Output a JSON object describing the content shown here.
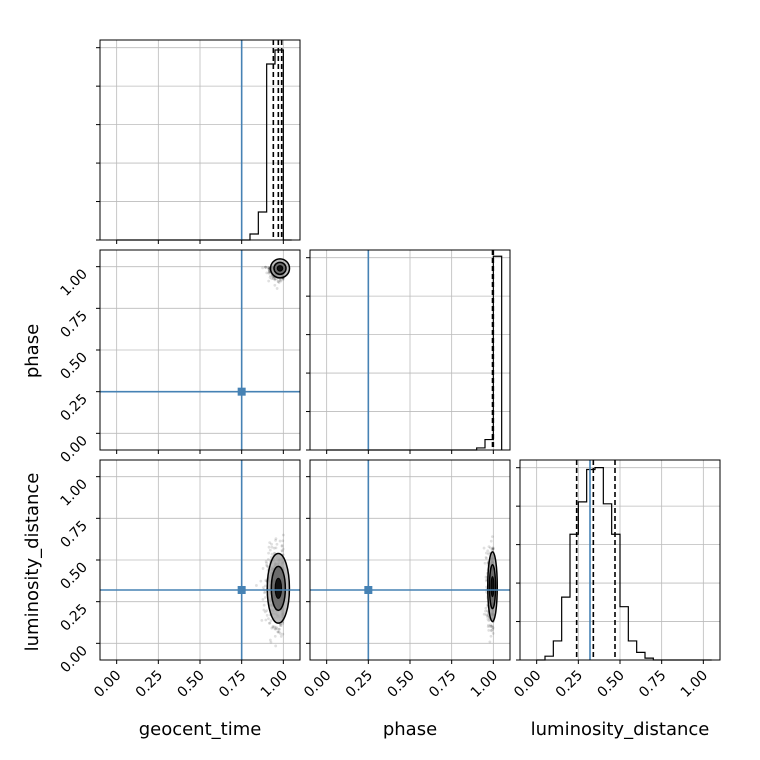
{
  "chart_data": {
    "type": "corner",
    "parameters": [
      "geocent_time",
      "phase",
      "luminosity_distance"
    ],
    "axis_range": [
      -0.1,
      1.1
    ],
    "tick_values": [
      0.0,
      0.25,
      0.5,
      0.75,
      1.0
    ],
    "tick_labels": [
      "0.00",
      "0.25",
      "0.50",
      "0.75",
      "1.00"
    ],
    "truths": {
      "geocent_time": 0.75,
      "phase": 0.25,
      "luminosity_distance": 0.32
    },
    "quantiles": {
      "geocent_time": [
        0.94,
        0.97,
        0.99
      ],
      "phase": [
        0.995,
        0.998,
        1.0
      ],
      "luminosity_distance": [
        0.24,
        0.34,
        0.47
      ]
    },
    "histograms": {
      "geocent_time": {
        "edges": [
          0.0,
          0.05,
          0.1,
          0.15,
          0.2,
          0.25,
          0.3,
          0.35,
          0.4,
          0.45,
          0.5,
          0.55,
          0.6,
          0.65,
          0.7,
          0.75,
          0.8,
          0.85,
          0.9,
          0.95,
          1.0,
          1.05
        ],
        "counts": [
          0,
          0,
          0,
          0,
          0,
          0,
          0,
          0,
          0,
          0,
          0,
          0,
          0,
          0,
          0,
          0,
          0.03,
          0.14,
          0.88,
          0.95,
          0
        ],
        "ymax": 1.0
      },
      "phase": {
        "edges": [
          0.0,
          0.05,
          0.1,
          0.15,
          0.2,
          0.25,
          0.3,
          0.35,
          0.4,
          0.45,
          0.5,
          0.55,
          0.6,
          0.65,
          0.7,
          0.75,
          0.8,
          0.85,
          0.9,
          0.95,
          1.0,
          1.05
        ],
        "counts": [
          0,
          0,
          0,
          0,
          0,
          0,
          0,
          0,
          0,
          0,
          0,
          0,
          0,
          0,
          0,
          0,
          0,
          0,
          0.01,
          0.05,
          0.93,
          0
        ],
        "ymax": 0.96
      },
      "luminosity_distance": {
        "edges": [
          0.0,
          0.05,
          0.1,
          0.15,
          0.2,
          0.25,
          0.3,
          0.35,
          0.4,
          0.45,
          0.5,
          0.55,
          0.6,
          0.65,
          0.7,
          0.75,
          0.8,
          0.85,
          0.9,
          0.95,
          1.0,
          1.05
        ],
        "counts": [
          0,
          0.02,
          0.1,
          0.33,
          0.66,
          0.83,
          1.0,
          1.01,
          0.82,
          0.66,
          0.28,
          0.1,
          0.04,
          0.01,
          0,
          0,
          0,
          0,
          0,
          0,
          0
        ],
        "ymax": 1.05
      }
    },
    "scatter_panels": [
      {
        "x": "geocent_time",
        "y": "phase",
        "center": [
          0.98,
          0.99
        ],
        "spread": [
          0.03,
          0.03
        ]
      },
      {
        "x": "geocent_time",
        "y": "luminosity_distance",
        "center": [
          0.97,
          0.33
        ],
        "spread": [
          0.035,
          0.11
        ]
      },
      {
        "x": "phase",
        "y": "luminosity_distance",
        "center": [
          0.995,
          0.34
        ],
        "spread": [
          0.015,
          0.11
        ]
      }
    ],
    "grid": true,
    "truth_color": "#4682b4",
    "quantile_style": "dashed"
  }
}
